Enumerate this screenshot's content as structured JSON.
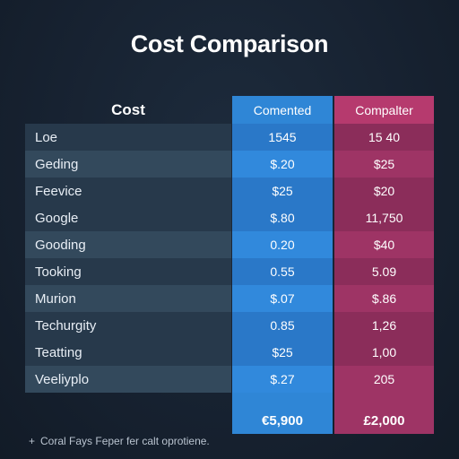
{
  "title": "Cost Comparison",
  "table": {
    "header": {
      "label": "Cost",
      "col1": "Comented",
      "col2": "Compalter"
    },
    "rows": [
      {
        "label": "Loe",
        "col1": "1545",
        "col2": "15 40"
      },
      {
        "label": "Geding",
        "col1": "$.20",
        "col2": "$25"
      },
      {
        "label": "Feevice",
        "col1": "$25",
        "col2": "$20"
      },
      {
        "label": "Google",
        "col1": "$.80",
        "col2": "11,750"
      },
      {
        "label": "Gooding",
        "col1": "0.20",
        "col2": "$40"
      },
      {
        "label": "Tooking",
        "col1": "0.55",
        "col2": "5.09"
      },
      {
        "label": "Murion",
        "col1": "$.07",
        "col2": "$.86"
      },
      {
        "label": "Techurgity",
        "col1": "0.85",
        "col2": "1,26"
      },
      {
        "label": "Teatting",
        "col1": "$25",
        "col2": "1,00"
      },
      {
        "label": "Veeliyplo",
        "col1": "$.27",
        "col2": "205"
      }
    ],
    "total": {
      "col1": "€5,900",
      "col2": "£2,000"
    }
  },
  "footnote": {
    "symbol": "+",
    "text": "Coral Fays Feper fer calt oprotiene."
  },
  "colors": {
    "blue_column": "#2f86d6",
    "pink_column": "#b63a6e",
    "background": "#172231"
  }
}
